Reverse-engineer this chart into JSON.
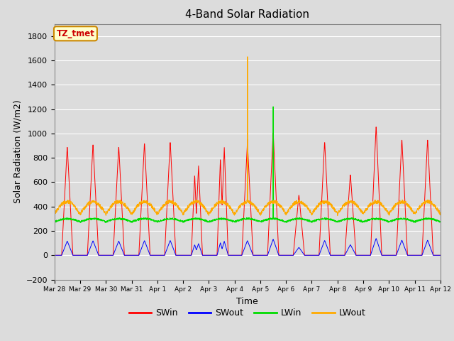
{
  "title": "4-Band Solar Radiation",
  "xlabel": "Time",
  "ylabel": "Solar Radiation (W/m2)",
  "ylim": [
    -200,
    1900
  ],
  "yticks": [
    -200,
    0,
    200,
    400,
    600,
    800,
    1000,
    1200,
    1400,
    1600,
    1800
  ],
  "bg_color": "#dcdcdc",
  "plot_bg_color": "#dcdcdc",
  "fig_bg_color": "#dcdcdc",
  "annotation_text": "TZ_tmet",
  "annotation_bg": "#ffffcc",
  "annotation_border": "#cc8800",
  "annotation_text_color": "#cc0000",
  "colors": {
    "SWin": "#ff0000",
    "SWout": "#0000ff",
    "LWin": "#00dd00",
    "LWout": "#ffaa00"
  },
  "legend_labels": [
    "SWin",
    "SWout",
    "LWin",
    "LWout"
  ],
  "x_tick_labels": [
    "Mar 28",
    "Mar 29",
    "Mar 30",
    "Mar 31",
    "Apr 1",
    "Apr 2",
    "Apr 3",
    "Apr 4",
    "Apr 5",
    "Apr 6",
    "Apr 7",
    "Apr 8",
    "Apr 9",
    "Apr 10",
    "Apr 11",
    "Apr 12"
  ],
  "num_days": 15,
  "pts_per_day": 144
}
